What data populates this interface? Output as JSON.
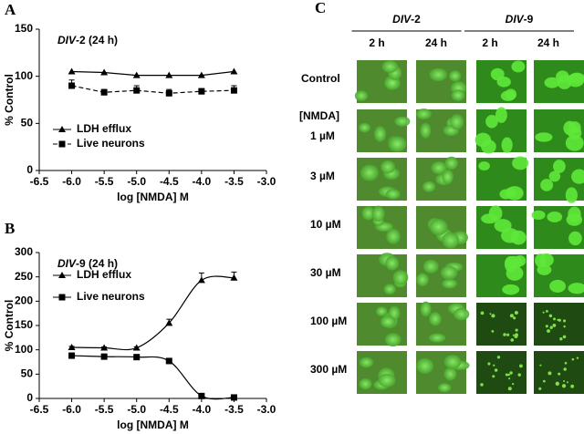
{
  "chart_data": [
    {
      "type": "line",
      "panel_label": "A",
      "annotation": {
        "italic": "DIV",
        "text": "-2 (24 h)"
      },
      "x_label": "log [NMDA] M",
      "y_label": "% Control",
      "curve": "straight",
      "x": [
        -6,
        -5.5,
        -5,
        -4.5,
        -4,
        -3.5
      ],
      "xlim": [
        -6.5,
        -3
      ],
      "xticks": [
        -6.5,
        {
          "value": -6,
          "label": "-6.0"
        },
        -5.5,
        {
          "value": -5,
          "label": "-5.0"
        },
        -4.5,
        {
          "value": -4,
          "label": "-4.0"
        },
        -3.5,
        {
          "value": -3,
          "label": "-3.0"
        }
      ],
      "ylim": [
        0,
        150
      ],
      "yticks": [
        0,
        50,
        100,
        150
      ],
      "legend": "lower-left",
      "series": [
        {
          "name": "LDH efflux",
          "color": "#000000",
          "marker": "triangle",
          "dash": false,
          "values": [
            105,
            104,
            101,
            101,
            101,
            105
          ]
        },
        {
          "name": "Live neurons",
          "color": "#000000",
          "marker": "square",
          "dash": true,
          "values": [
            90,
            83,
            85,
            82,
            84,
            85
          ],
          "errors": [
            6,
            3,
            5,
            4,
            3,
            5
          ]
        }
      ]
    },
    {
      "type": "line",
      "panel_label": "B",
      "annotation": {
        "italic": "DIV",
        "text": "-9 (24 h)"
      },
      "x_label": "log [NMDA] M",
      "y_label": "% Control",
      "curve": "smooth",
      "x": [
        -6,
        -5.5,
        -5,
        -4.5,
        -4,
        -3.5
      ],
      "xlim": [
        -6.5,
        -3
      ],
      "xticks": [
        -6.5,
        {
          "value": -6,
          "label": "-6.0"
        },
        -5.5,
        {
          "value": -5,
          "label": "-5.0"
        },
        -4.5,
        {
          "value": -4,
          "label": "-4.0"
        },
        -3.5,
        {
          "value": -3,
          "label": "-3.0"
        }
      ],
      "ylim": [
        0,
        300
      ],
      "yticks": [
        0,
        50,
        100,
        150,
        200,
        250,
        300
      ],
      "legend": "upper-left",
      "series": [
        {
          "name": "LDH efflux",
          "color": "#000000",
          "marker": "triangle",
          "dash": false,
          "values": [
            105,
            104,
            104,
            155,
            243,
            248
          ],
          "errors": [
            2,
            2,
            2,
            8,
            15,
            12
          ]
        },
        {
          "name": "Live neurons",
          "color": "#000000",
          "marker": "square",
          "dash": false,
          "values": [
            88,
            86,
            85,
            77,
            5,
            2
          ],
          "errors": [
            5,
            4,
            4,
            4,
            2,
            1
          ]
        }
      ]
    }
  ],
  "panel_c": {
    "panel_label": "C",
    "nmda_label": "[NMDA]",
    "groups": [
      {
        "italic": "DIV",
        "text": "-2",
        "times": [
          "2 h",
          "24 h"
        ]
      },
      {
        "italic": "DIV",
        "text": "-9",
        "times": [
          "2 h",
          "24 h"
        ]
      }
    ],
    "rows": [
      "Control",
      "1 µM",
      "3 µM",
      "10 µM",
      "30 µM",
      "100 µM",
      "300 µM"
    ]
  }
}
